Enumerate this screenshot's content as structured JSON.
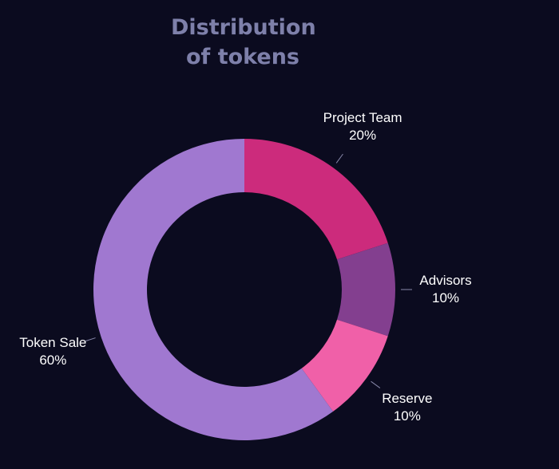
{
  "chart_data": {
    "type": "donut",
    "title": "Distribution of tokens",
    "categories": [
      "Project Team",
      "Advisors",
      "Reserve",
      "Token Sale"
    ],
    "values": [
      20,
      10,
      10,
      60
    ],
    "value_labels": [
      "20%",
      "10%",
      "10%",
      "60%"
    ],
    "colors": [
      "#cc2b7c",
      "#833f8f",
      "#f060a8",
      "#a078d0"
    ]
  }
}
